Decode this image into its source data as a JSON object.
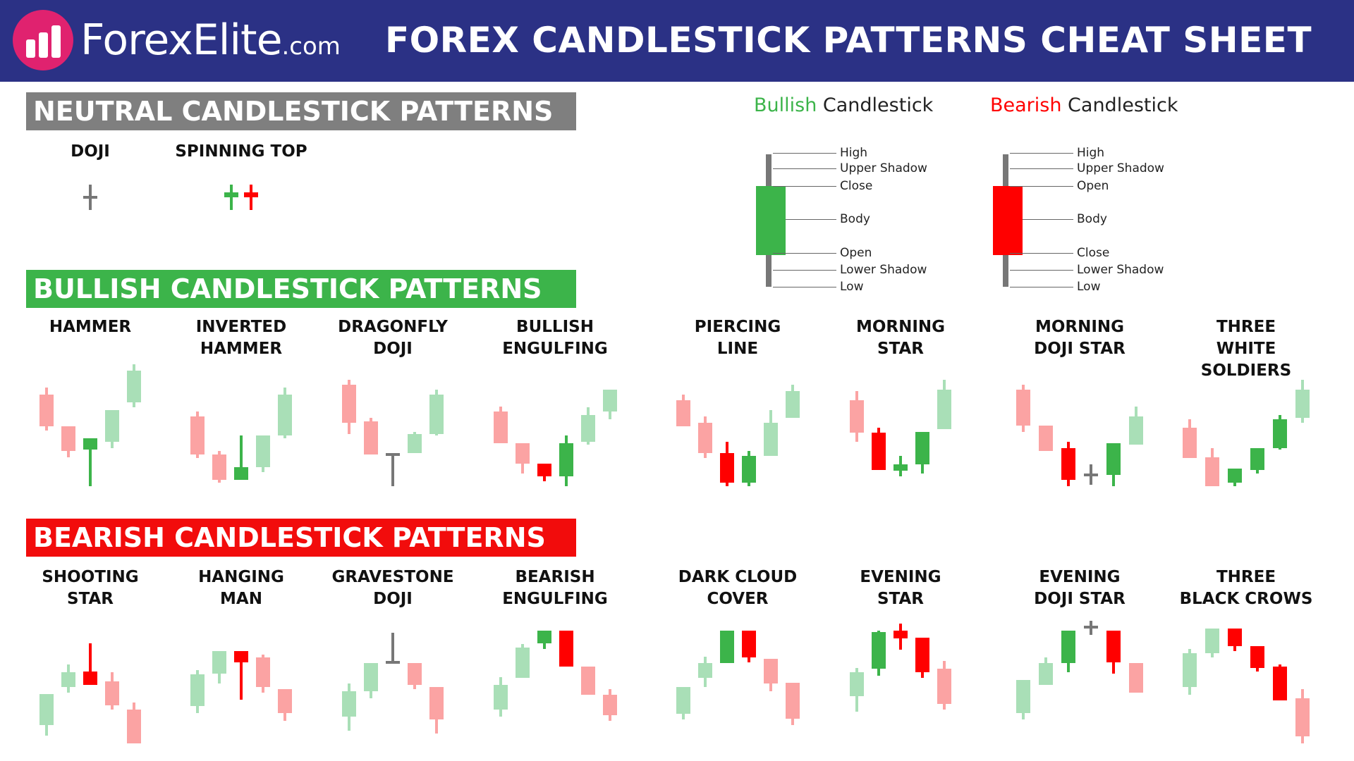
{
  "header": {
    "logo_name": "ForexElite",
    "logo_suffix": ".com",
    "title": "FOREX CANDLESTICK PATTERNS CHEAT SHEET"
  },
  "colors": {
    "header_bg": "#2b3185",
    "logo_circle": "#e0226f",
    "neutral_banner": "#7f7f7f",
    "bullish_banner": "#3cb44a",
    "bearish_banner": "#f20c0c",
    "bull": "#3cb44a",
    "bear": "#ff0000",
    "bull_light": "#a9dfb7",
    "bear_light": "#fba3a3",
    "wick": "#777777"
  },
  "sections": {
    "neutral": {
      "title": "NEUTRAL CANDLESTICK PATTERNS",
      "patterns": [
        {
          "label": "DOJI",
          "candles": [
            {
              "type": "doji",
              "open": 5.0,
              "close": 5.0,
              "high": 6.5,
              "low": 3.5
            }
          ]
        },
        {
          "label": "SPINNING TOP",
          "candles": [
            {
              "type": "bull",
              "open": 5.0,
              "close": 5.6,
              "high": 6.5,
              "low": 3.5
            },
            {
              "type": "bear",
              "open": 5.6,
              "close": 5.0,
              "high": 6.5,
              "low": 3.5
            }
          ]
        }
      ]
    },
    "bullish": {
      "title": "BULLISH CANDLESTICK PATTERNS",
      "patterns": [
        {
          "label": "HAMMER",
          "candles": [
            {
              "type": "bear_light",
              "open": 7.2,
              "close": 4.7,
              "high": 7.8,
              "low": 4.4
            },
            {
              "type": "bear_light",
              "open": 4.7,
              "close": 2.8,
              "high": 4.7,
              "low": 2.3
            },
            {
              "type": "bull",
              "open": 2.9,
              "close": 3.8,
              "high": 3.8,
              "low": 0.0
            },
            {
              "type": "bull_light",
              "open": 3.5,
              "close": 6.0,
              "high": 6.0,
              "low": 3.0
            },
            {
              "type": "bull_light",
              "open": 6.6,
              "close": 9.1,
              "high": 9.6,
              "low": 6.2
            }
          ]
        },
        {
          "label": "INVERTED\nHAMMER",
          "candles": [
            {
              "type": "bear_light",
              "open": 5.5,
              "close": 2.5,
              "high": 5.9,
              "low": 2.2
            },
            {
              "type": "bear_light",
              "open": 2.5,
              "close": 0.5,
              "high": 2.8,
              "low": 0.3
            },
            {
              "type": "bull",
              "open": 0.5,
              "close": 1.5,
              "high": 4.0,
              "low": 0.5
            },
            {
              "type": "bull_light",
              "open": 1.5,
              "close": 4.0,
              "high": 4.0,
              "low": 1.1
            },
            {
              "type": "bull_light",
              "open": 4.0,
              "close": 7.2,
              "high": 7.8,
              "low": 3.8
            }
          ]
        },
        {
          "label": "DRAGONFLY\nDOJI",
          "candles": [
            {
              "type": "bear_light",
              "open": 8.0,
              "close": 5.0,
              "high": 8.4,
              "low": 4.1
            },
            {
              "type": "bear_light",
              "open": 5.1,
              "close": 2.5,
              "high": 5.4,
              "low": 2.5
            },
            {
              "type": "doji",
              "open": 2.5,
              "close": 2.5,
              "high": 2.5,
              "low": 0.0
            },
            {
              "type": "bull_light",
              "open": 2.6,
              "close": 4.1,
              "high": 4.3,
              "low": 2.6
            },
            {
              "type": "bull_light",
              "open": 4.1,
              "close": 7.2,
              "high": 7.6,
              "low": 4.0
            }
          ]
        },
        {
          "label": "BULLISH\nENGULFING",
          "candles": [
            {
              "type": "bear_light",
              "open": 5.9,
              "close": 3.4,
              "high": 6.3,
              "low": 3.4
            },
            {
              "type": "bear_light",
              "open": 3.4,
              "close": 1.8,
              "high": 3.4,
              "low": 1.0
            },
            {
              "type": "bear",
              "open": 1.8,
              "close": 0.8,
              "high": 1.8,
              "low": 0.4
            },
            {
              "type": "bull",
              "open": 0.8,
              "close": 3.4,
              "high": 4.0,
              "low": 0.0
            },
            {
              "type": "bull_light",
              "open": 3.5,
              "close": 5.6,
              "high": 6.2,
              "low": 3.3
            },
            {
              "type": "bull_light",
              "open": 5.9,
              "close": 7.6,
              "high": 7.6,
              "low": 5.3
            }
          ]
        },
        {
          "label": "PIERCING\nLINE",
          "candles": [
            {
              "type": "bear_light",
              "open": 6.8,
              "close": 4.7,
              "high": 7.2,
              "low": 4.7
            },
            {
              "type": "bear_light",
              "open": 5.0,
              "close": 2.6,
              "high": 5.5,
              "low": 2.2
            },
            {
              "type": "bear",
              "open": 2.6,
              "close": 0.3,
              "high": 3.5,
              "low": 0.0
            },
            {
              "type": "bull",
              "open": 0.3,
              "close": 2.4,
              "high": 2.8,
              "low": 0.0
            },
            {
              "type": "bull_light",
              "open": 2.4,
              "close": 5.0,
              "high": 6.0,
              "low": 2.4
            },
            {
              "type": "bull_light",
              "open": 5.4,
              "close": 7.5,
              "high": 8.0,
              "low": 5.4
            }
          ]
        },
        {
          "label": "MORNING\nSTAR",
          "candles": [
            {
              "type": "bear_light",
              "open": 6.8,
              "close": 4.2,
              "high": 7.5,
              "low": 3.5
            },
            {
              "type": "bear",
              "open": 4.2,
              "close": 1.3,
              "high": 4.6,
              "low": 1.3
            },
            {
              "type": "bull",
              "open": 1.2,
              "close": 1.7,
              "high": 2.4,
              "low": 0.8
            },
            {
              "type": "bull",
              "open": 1.7,
              "close": 4.3,
              "high": 4.3,
              "low": 1.0
            },
            {
              "type": "bull_light",
              "open": 4.5,
              "close": 7.6,
              "high": 8.4,
              "low": 4.5
            }
          ]
        },
        {
          "label": "MORNING\nDOJI STAR",
          "candles": [
            {
              "type": "bear_light",
              "open": 7.6,
              "close": 4.8,
              "high": 8.0,
              "low": 4.3
            },
            {
              "type": "bear_light",
              "open": 4.8,
              "close": 2.8,
              "high": 4.8,
              "low": 2.8
            },
            {
              "type": "bear",
              "open": 3.0,
              "close": 0.5,
              "high": 3.5,
              "low": 0.0
            },
            {
              "type": "doji",
              "open": 0.9,
              "close": 0.9,
              "high": 1.7,
              "low": 0.1
            },
            {
              "type": "bull",
              "open": 0.9,
              "close": 3.4,
              "high": 3.4,
              "low": 0.0
            },
            {
              "type": "bull_light",
              "open": 3.3,
              "close": 5.5,
              "high": 6.3,
              "low": 3.3
            }
          ]
        },
        {
          "label": "THREE\nWHITE SOLDIERS",
          "candles": [
            {
              "type": "bear_light",
              "open": 4.6,
              "close": 2.2,
              "high": 5.3,
              "low": 2.2
            },
            {
              "type": "bear_light",
              "open": 2.3,
              "close": 0.0,
              "high": 3.0,
              "low": 0.0
            },
            {
              "type": "bull",
              "open": 0.3,
              "close": 1.4,
              "high": 1.4,
              "low": 0.0
            },
            {
              "type": "bull",
              "open": 1.3,
              "close": 3.0,
              "high": 3.0,
              "low": 1.0
            },
            {
              "type": "bull",
              "open": 3.0,
              "close": 5.3,
              "high": 5.6,
              "low": 2.9
            },
            {
              "type": "bull_light",
              "open": 5.4,
              "close": 7.6,
              "high": 8.4,
              "low": 5.0
            }
          ]
        }
      ]
    },
    "bearish": {
      "title": "BEARISH CANDLESTICK PATTERNS",
      "patterns": [
        {
          "label": "SHOOTING\nSTAR",
          "candles": [
            {
              "type": "bull_light",
              "open": 1.6,
              "close": 4.4,
              "high": 4.4,
              "low": 0.7
            },
            {
              "type": "bull_light",
              "open": 5.0,
              "close": 6.3,
              "high": 7.0,
              "low": 4.5
            },
            {
              "type": "bear",
              "open": 6.4,
              "close": 5.2,
              "high": 8.9,
              "low": 5.2
            },
            {
              "type": "bear_light",
              "open": 5.5,
              "close": 3.4,
              "high": 6.3,
              "low": 3.0
            },
            {
              "type": "bear_light",
              "open": 3.0,
              "close": 0.0,
              "high": 3.6,
              "low": 0.0
            }
          ]
        },
        {
          "label": "HANGING\nMAN",
          "candles": [
            {
              "type": "bull_light",
              "open": 3.3,
              "close": 6.1,
              "high": 6.5,
              "low": 2.7
            },
            {
              "type": "bull_light",
              "open": 6.2,
              "close": 8.2,
              "high": 8.2,
              "low": 5.3
            },
            {
              "type": "bear",
              "open": 8.2,
              "close": 7.2,
              "high": 8.2,
              "low": 3.9
            },
            {
              "type": "bear_light",
              "open": 7.6,
              "close": 5.0,
              "high": 7.9,
              "low": 4.5
            },
            {
              "type": "bear_light",
              "open": 4.8,
              "close": 2.7,
              "high": 4.8,
              "low": 2.0
            }
          ]
        },
        {
          "label": "GRAVESTONE\nDOJI",
          "candles": [
            {
              "type": "bull_light",
              "open": 2.4,
              "close": 4.6,
              "high": 5.3,
              "low": 1.1
            },
            {
              "type": "bull_light",
              "open": 4.6,
              "close": 7.1,
              "high": 7.1,
              "low": 4.0
            },
            {
              "type": "doji",
              "open": 7.2,
              "close": 7.2,
              "high": 9.8,
              "low": 7.2
            },
            {
              "type": "bear_light",
              "open": 7.1,
              "close": 5.2,
              "high": 7.1,
              "low": 4.8
            },
            {
              "type": "bear_light",
              "open": 5.0,
              "close": 2.1,
              "high": 5.0,
              "low": 0.9
            }
          ]
        },
        {
          "label": "BEARISH\nENGULFING",
          "candles": [
            {
              "type": "bull_light",
              "open": 3.0,
              "close": 5.2,
              "high": 5.9,
              "low": 2.4
            },
            {
              "type": "bull_light",
              "open": 5.8,
              "close": 8.5,
              "high": 8.8,
              "low": 5.8
            },
            {
              "type": "bull",
              "open": 8.9,
              "close": 10.0,
              "high": 10.0,
              "low": 8.4
            },
            {
              "type": "bear",
              "open": 10.0,
              "close": 6.8,
              "high": 10.0,
              "low": 6.8
            },
            {
              "type": "bear_light",
              "open": 6.8,
              "close": 4.3,
              "high": 6.8,
              "low": 4.3
            },
            {
              "type": "bear_light",
              "open": 4.3,
              "close": 2.5,
              "high": 4.8,
              "low": 2.0
            }
          ]
        },
        {
          "label": "DARK CLOUD\nCOVER",
          "candles": [
            {
              "type": "bull_light",
              "open": 2.6,
              "close": 5.0,
              "high": 5.0,
              "low": 2.1
            },
            {
              "type": "bull_light",
              "open": 5.8,
              "close": 7.1,
              "high": 7.7,
              "low": 5.0
            },
            {
              "type": "bull",
              "open": 7.1,
              "close": 10.0,
              "high": 10.0,
              "low": 7.1
            },
            {
              "type": "bear",
              "open": 10.0,
              "close": 7.6,
              "high": 10.0,
              "low": 7.2
            },
            {
              "type": "bear_light",
              "open": 7.5,
              "close": 5.3,
              "high": 7.5,
              "low": 4.6
            },
            {
              "type": "bear_light",
              "open": 5.4,
              "close": 2.2,
              "high": 5.4,
              "low": 1.6
            }
          ]
        },
        {
          "label": "EVENING\nSTAR",
          "candles": [
            {
              "type": "bull_light",
              "open": 4.2,
              "close": 6.3,
              "high": 6.7,
              "low": 2.8
            },
            {
              "type": "bull",
              "open": 6.6,
              "close": 9.9,
              "high": 10.0,
              "low": 6.0
            },
            {
              "type": "bear",
              "open": 10.0,
              "close": 9.3,
              "high": 10.6,
              "low": 8.3
            },
            {
              "type": "bear",
              "open": 9.4,
              "close": 6.3,
              "high": 9.4,
              "low": 5.8
            },
            {
              "type": "bear_light",
              "open": 6.6,
              "close": 3.5,
              "high": 7.3,
              "low": 3.0
            }
          ]
        },
        {
          "label": "EVENING\nDOJI STAR",
          "candles": [
            {
              "type": "bull_light",
              "open": 2.7,
              "close": 5.6,
              "high": 5.6,
              "low": 2.1
            },
            {
              "type": "bull_light",
              "open": 5.2,
              "close": 7.1,
              "high": 7.6,
              "low": 5.2
            },
            {
              "type": "bull",
              "open": 7.1,
              "close": 10.0,
              "high": 10.0,
              "low": 6.3
            },
            {
              "type": "doji",
              "open": 10.3,
              "close": 10.3,
              "high": 10.9,
              "low": 9.6
            },
            {
              "type": "bear",
              "open": 10.0,
              "close": 7.2,
              "high": 10.0,
              "low": 6.2
            },
            {
              "type": "bear_light",
              "open": 7.1,
              "close": 4.5,
              "high": 7.1,
              "low": 4.5
            }
          ]
        },
        {
          "label": "THREE\nBLACK CROWS",
          "candles": [
            {
              "type": "bull_light",
              "open": 5.0,
              "close": 8.0,
              "high": 8.4,
              "low": 4.3
            },
            {
              "type": "bull_light",
              "open": 8.0,
              "close": 10.2,
              "high": 10.2,
              "low": 7.6
            },
            {
              "type": "bear",
              "open": 10.2,
              "close": 8.6,
              "high": 10.2,
              "low": 8.2
            },
            {
              "type": "bear",
              "open": 8.6,
              "close": 6.7,
              "high": 8.6,
              "low": 6.4
            },
            {
              "type": "bear",
              "open": 6.8,
              "close": 3.8,
              "high": 7.0,
              "low": 3.8
            },
            {
              "type": "bear_light",
              "open": 4.0,
              "close": 0.6,
              "high": 4.8,
              "low": 0.0
            }
          ]
        }
      ]
    }
  },
  "legend": {
    "bullish": {
      "kind": "Bullish",
      "word": " Candlestick",
      "labels": [
        "High",
        "Upper Shadow",
        "Close",
        "Body",
        "Open",
        "Lower Shadow",
        "Low"
      ]
    },
    "bearish": {
      "kind": "Bearish",
      "word": " Candlestick",
      "labels": [
        "High",
        "Upper Shadow",
        "Open",
        "Body",
        "Close",
        "Lower Shadow",
        "Low"
      ]
    }
  }
}
